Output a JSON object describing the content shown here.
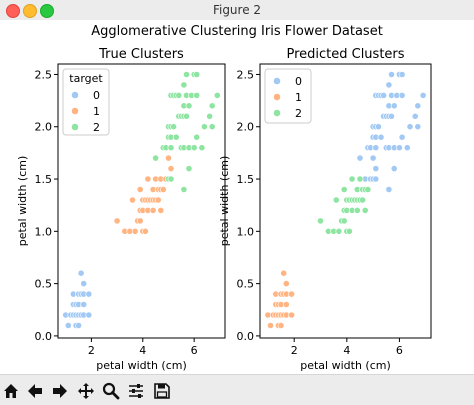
{
  "window": {
    "title": "Figure 2"
  },
  "figure": {
    "suptitle": "Agglomerative Clustering Iris Flower Dataset"
  },
  "toolbar": {
    "buttons": [
      "home-icon",
      "back-arrow-icon",
      "forward-arrow-icon",
      "pan-icon",
      "zoom-icon",
      "configure-subplots-icon",
      "save-icon"
    ]
  },
  "colors": {
    "cluster0": "#a1c9f4",
    "cluster1": "#ffb482",
    "cluster2": "#8de5a1"
  },
  "chart_data": [
    {
      "type": "scatter",
      "title": "True Clusters",
      "xlabel": "petal width (cm)",
      "ylabel": "petal width (cm)",
      "xlim": [
        0.7,
        7.2
      ],
      "ylim": [
        -0.02,
        2.6
      ],
      "xticks": [
        "2",
        "4",
        "6"
      ],
      "yticks": [
        "0.0",
        "0.5",
        "1.0",
        "1.5",
        "2.0",
        "2.5"
      ],
      "grid": false,
      "legend": {
        "title": "target",
        "position": "top-left",
        "entries": [
          "0",
          "1",
          "2"
        ]
      },
      "series": [
        {
          "name": "0",
          "color": "#a1c9f4",
          "points": [
            [
              1.0,
              0.2
            ],
            [
              1.1,
              0.1
            ],
            [
              1.2,
              0.2
            ],
            [
              1.3,
              0.2
            ],
            [
              1.3,
              0.3
            ],
            [
              1.3,
              0.4
            ],
            [
              1.4,
              0.1
            ],
            [
              1.4,
              0.2
            ],
            [
              1.4,
              0.3
            ],
            [
              1.5,
              0.1
            ],
            [
              1.5,
              0.2
            ],
            [
              1.5,
              0.3
            ],
            [
              1.5,
              0.4
            ],
            [
              1.6,
              0.2
            ],
            [
              1.6,
              0.4
            ],
            [
              1.6,
              0.6
            ],
            [
              1.7,
              0.2
            ],
            [
              1.7,
              0.3
            ],
            [
              1.7,
              0.4
            ],
            [
              1.7,
              0.5
            ],
            [
              1.9,
              0.2
            ],
            [
              1.9,
              0.4
            ]
          ]
        },
        {
          "name": "1",
          "color": "#ffb482",
          "points": [
            [
              3.0,
              1.1
            ],
            [
              3.3,
              1.0
            ],
            [
              3.5,
              1.0
            ],
            [
              3.6,
              1.3
            ],
            [
              3.7,
              1.0
            ],
            [
              3.8,
              1.1
            ],
            [
              3.9,
              1.1
            ],
            [
              3.9,
              1.2
            ],
            [
              3.9,
              1.4
            ],
            [
              4.0,
              1.0
            ],
            [
              4.0,
              1.2
            ],
            [
              4.0,
              1.3
            ],
            [
              4.1,
              1.0
            ],
            [
              4.1,
              1.3
            ],
            [
              4.2,
              1.2
            ],
            [
              4.2,
              1.3
            ],
            [
              4.2,
              1.5
            ],
            [
              4.3,
              1.3
            ],
            [
              4.4,
              1.2
            ],
            [
              4.4,
              1.3
            ],
            [
              4.4,
              1.4
            ],
            [
              4.5,
              1.3
            ],
            [
              4.5,
              1.5
            ],
            [
              4.6,
              1.3
            ],
            [
              4.6,
              1.4
            ],
            [
              4.7,
              1.2
            ],
            [
              4.7,
              1.4
            ],
            [
              4.7,
              1.5
            ],
            [
              4.8,
              1.4
            ],
            [
              4.8,
              1.8
            ],
            [
              4.9,
              1.5
            ],
            [
              5.0,
              1.7
            ],
            [
              5.1,
              1.6
            ]
          ]
        },
        {
          "name": "2",
          "color": "#8de5a1",
          "points": [
            [
              4.5,
              1.7
            ],
            [
              4.8,
              1.8
            ],
            [
              4.9,
              1.8
            ],
            [
              5.0,
              1.5
            ],
            [
              5.0,
              1.9
            ],
            [
              5.0,
              2.0
            ],
            [
              5.1,
              1.5
            ],
            [
              5.1,
              1.8
            ],
            [
              5.1,
              1.9
            ],
            [
              5.1,
              2.0
            ],
            [
              5.1,
              2.3
            ],
            [
              5.2,
              2.0
            ],
            [
              5.2,
              2.3
            ],
            [
              5.3,
              1.9
            ],
            [
              5.3,
              2.3
            ],
            [
              5.4,
              2.1
            ],
            [
              5.4,
              2.3
            ],
            [
              5.5,
              1.8
            ],
            [
              5.5,
              2.1
            ],
            [
              5.6,
              1.4
            ],
            [
              5.6,
              1.8
            ],
            [
              5.6,
              2.1
            ],
            [
              5.6,
              2.2
            ],
            [
              5.6,
              2.4
            ],
            [
              5.7,
              2.1
            ],
            [
              5.7,
              2.3
            ],
            [
              5.7,
              2.5
            ],
            [
              5.8,
              1.6
            ],
            [
              5.8,
              1.8
            ],
            [
              5.8,
              2.2
            ],
            [
              5.9,
              2.3
            ],
            [
              6.0,
              1.8
            ],
            [
              6.0,
              2.5
            ],
            [
              6.1,
              1.9
            ],
            [
              6.1,
              2.3
            ],
            [
              6.1,
              2.5
            ],
            [
              6.3,
              1.8
            ],
            [
              6.4,
              2.0
            ],
            [
              6.6,
              2.1
            ],
            [
              6.7,
              2.0
            ],
            [
              6.7,
              2.2
            ],
            [
              6.9,
              2.3
            ]
          ]
        }
      ]
    },
    {
      "type": "scatter",
      "title": "Predicted Clusters",
      "xlabel": "petal width (cm)",
      "ylabel": "petal width (cm)",
      "xlim": [
        0.7,
        7.2
      ],
      "ylim": [
        -0.02,
        2.6
      ],
      "xticks": [
        "2",
        "4",
        "6"
      ],
      "yticks": [
        "0.0",
        "0.5",
        "1.0",
        "1.5",
        "2.0",
        "2.5"
      ],
      "grid": false,
      "legend": {
        "title": "",
        "position": "top-left",
        "entries": [
          "0",
          "1",
          "2"
        ]
      },
      "series": [
        {
          "name": "0",
          "color": "#a1c9f4",
          "points": [
            [
              4.5,
              1.7
            ],
            [
              4.7,
              1.5
            ],
            [
              4.8,
              1.8
            ],
            [
              4.9,
              1.5
            ],
            [
              4.9,
              1.8
            ],
            [
              5.0,
              1.5
            ],
            [
              5.0,
              1.7
            ],
            [
              5.0,
              1.9
            ],
            [
              5.0,
              2.0
            ],
            [
              5.1,
              1.5
            ],
            [
              5.1,
              1.6
            ],
            [
              5.1,
              1.8
            ],
            [
              5.1,
              1.9
            ],
            [
              5.1,
              2.0
            ],
            [
              5.1,
              2.3
            ],
            [
              5.2,
              2.0
            ],
            [
              5.2,
              2.3
            ],
            [
              5.3,
              1.9
            ],
            [
              5.3,
              2.3
            ],
            [
              5.4,
              2.1
            ],
            [
              5.4,
              2.3
            ],
            [
              5.5,
              1.8
            ],
            [
              5.5,
              2.1
            ],
            [
              5.6,
              1.4
            ],
            [
              5.6,
              1.8
            ],
            [
              5.6,
              2.1
            ],
            [
              5.6,
              2.2
            ],
            [
              5.6,
              2.4
            ],
            [
              5.7,
              2.1
            ],
            [
              5.7,
              2.3
            ],
            [
              5.7,
              2.5
            ],
            [
              5.8,
              1.6
            ],
            [
              5.8,
              1.8
            ],
            [
              5.8,
              2.2
            ],
            [
              5.9,
              2.3
            ],
            [
              6.0,
              1.8
            ],
            [
              6.0,
              2.5
            ],
            [
              6.1,
              1.9
            ],
            [
              6.1,
              2.3
            ],
            [
              6.1,
              2.5
            ],
            [
              6.3,
              1.8
            ],
            [
              6.4,
              2.0
            ],
            [
              6.6,
              2.1
            ],
            [
              6.7,
              2.0
            ],
            [
              6.7,
              2.2
            ],
            [
              6.9,
              2.3
            ]
          ]
        },
        {
          "name": "1",
          "color": "#ffb482",
          "points": [
            [
              1.0,
              0.2
            ],
            [
              1.1,
              0.1
            ],
            [
              1.2,
              0.2
            ],
            [
              1.3,
              0.2
            ],
            [
              1.3,
              0.3
            ],
            [
              1.3,
              0.4
            ],
            [
              1.4,
              0.1
            ],
            [
              1.4,
              0.2
            ],
            [
              1.4,
              0.3
            ],
            [
              1.5,
              0.1
            ],
            [
              1.5,
              0.2
            ],
            [
              1.5,
              0.3
            ],
            [
              1.5,
              0.4
            ],
            [
              1.6,
              0.2
            ],
            [
              1.6,
              0.4
            ],
            [
              1.6,
              0.6
            ],
            [
              1.7,
              0.2
            ],
            [
              1.7,
              0.3
            ],
            [
              1.7,
              0.4
            ],
            [
              1.7,
              0.5
            ],
            [
              1.9,
              0.2
            ],
            [
              1.9,
              0.4
            ]
          ]
        },
        {
          "name": "2",
          "color": "#8de5a1",
          "points": [
            [
              3.0,
              1.1
            ],
            [
              3.3,
              1.0
            ],
            [
              3.5,
              1.0
            ],
            [
              3.6,
              1.3
            ],
            [
              3.7,
              1.0
            ],
            [
              3.8,
              1.1
            ],
            [
              3.9,
              1.1
            ],
            [
              3.9,
              1.2
            ],
            [
              3.9,
              1.4
            ],
            [
              4.0,
              1.0
            ],
            [
              4.0,
              1.2
            ],
            [
              4.0,
              1.3
            ],
            [
              4.1,
              1.0
            ],
            [
              4.1,
              1.3
            ],
            [
              4.2,
              1.2
            ],
            [
              4.2,
              1.3
            ],
            [
              4.2,
              1.5
            ],
            [
              4.3,
              1.3
            ],
            [
              4.4,
              1.2
            ],
            [
              4.4,
              1.3
            ],
            [
              4.4,
              1.4
            ],
            [
              4.5,
              1.3
            ],
            [
              4.5,
              1.5
            ],
            [
              4.6,
              1.3
            ],
            [
              4.6,
              1.4
            ],
            [
              4.7,
              1.2
            ],
            [
              4.7,
              1.4
            ],
            [
              4.8,
              1.4
            ]
          ]
        }
      ]
    }
  ]
}
